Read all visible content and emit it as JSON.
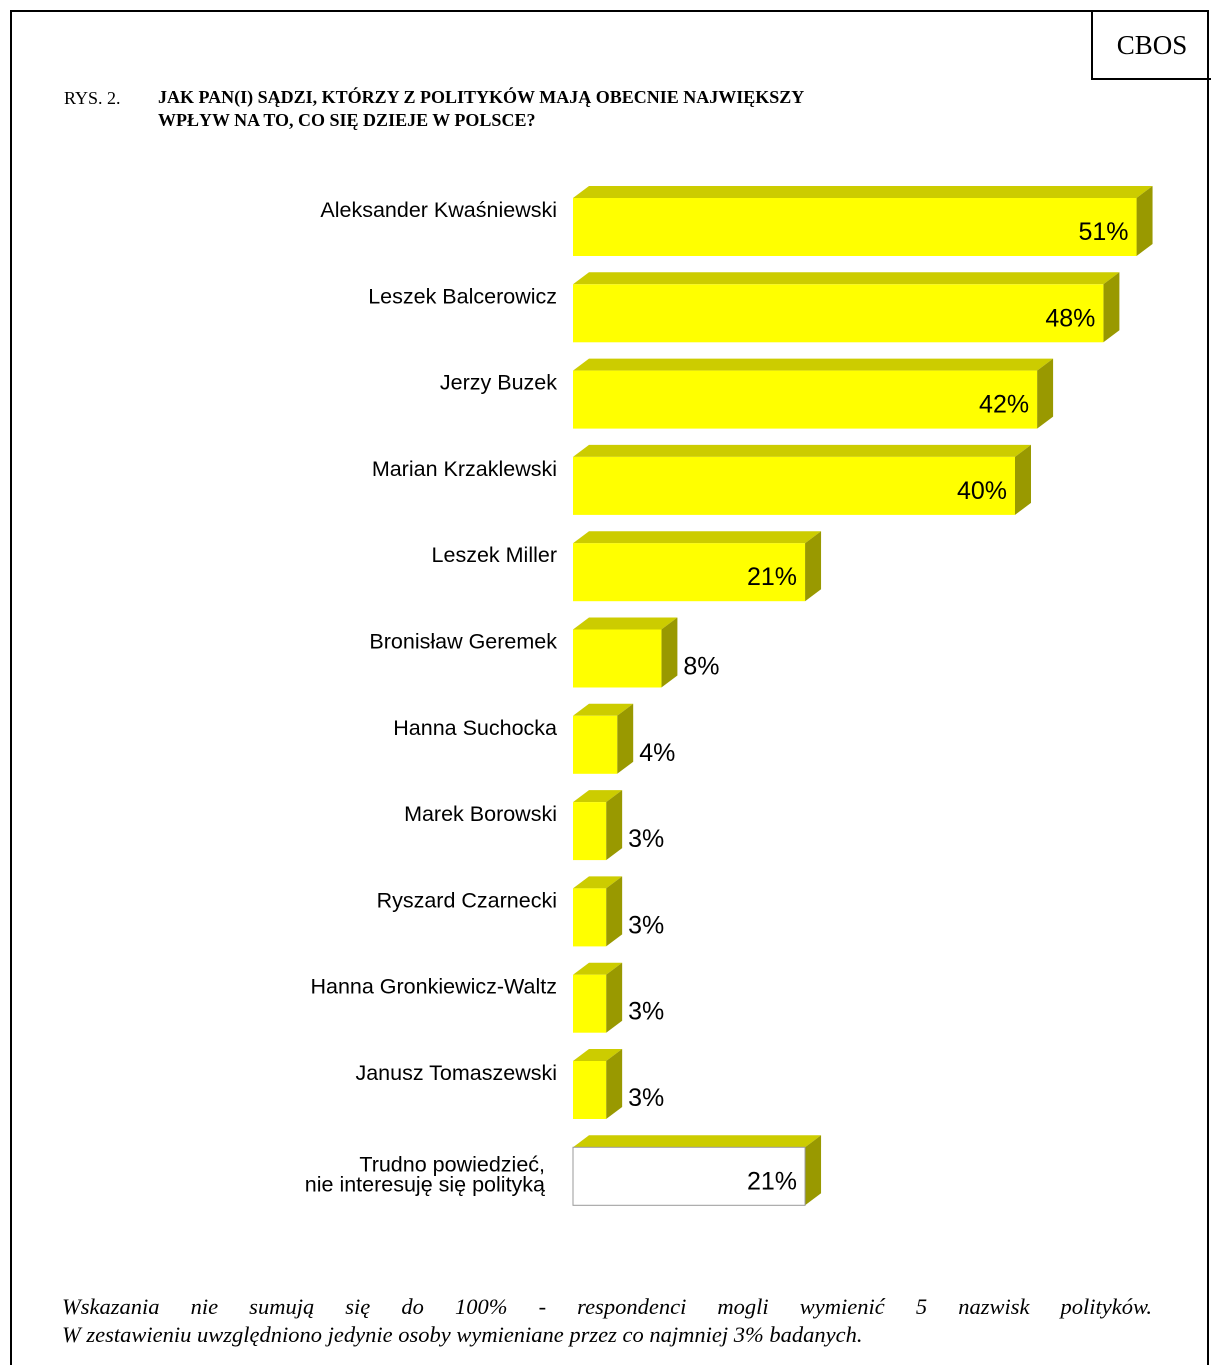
{
  "header": {
    "brand": "CBOS",
    "figure_prefix": "RYS. 2.",
    "title_line1": "JAK PAN(I) SĄDZI, KTÓRZY Z POLITYKÓW MAJĄ OBECNIE NAJWIĘKSZY",
    "title_line2": "WPŁYW NA TO, CO SIĘ DZIEJE W POLSCE?"
  },
  "chart_data": {
    "type": "bar",
    "orientation": "horizontal",
    "categories": [
      "Aleksander Kwaśniewski",
      "Leszek Balcerowicz",
      "Jerzy Buzek",
      "Marian Krzaklewski",
      "Leszek Miller",
      "Bronisław Geremek",
      "Hanna Suchocka",
      "Marek Borowski",
      "Ryszard Czarnecki",
      "Hanna Gronkiewicz-Waltz",
      "Janusz Tomaszewski",
      [
        "Trudno powiedzieć,",
        "nie interesuję się polityką"
      ]
    ],
    "values": [
      51,
      48,
      42,
      40,
      21,
      8,
      4,
      3,
      3,
      3,
      3,
      21
    ],
    "value_labels": [
      "51%",
      "48%",
      "42%",
      "40%",
      "21%",
      "8%",
      "4%",
      "3%",
      "3%",
      "3%",
      "3%",
      "21%"
    ],
    "colors": {
      "bar_front": "#ffff00",
      "bar_top": "#cccc00",
      "bar_side": "#999900",
      "other_front": "#ffffff"
    }
  },
  "footnote": {
    "line1": "Wskazania nie sumują się do 100% - respondenci mogli wymienić 5 nazwisk polityków.",
    "line2": "W zestawieniu uwzględniono jedynie osoby wymieniane przez co najmniej 3% badanych."
  }
}
